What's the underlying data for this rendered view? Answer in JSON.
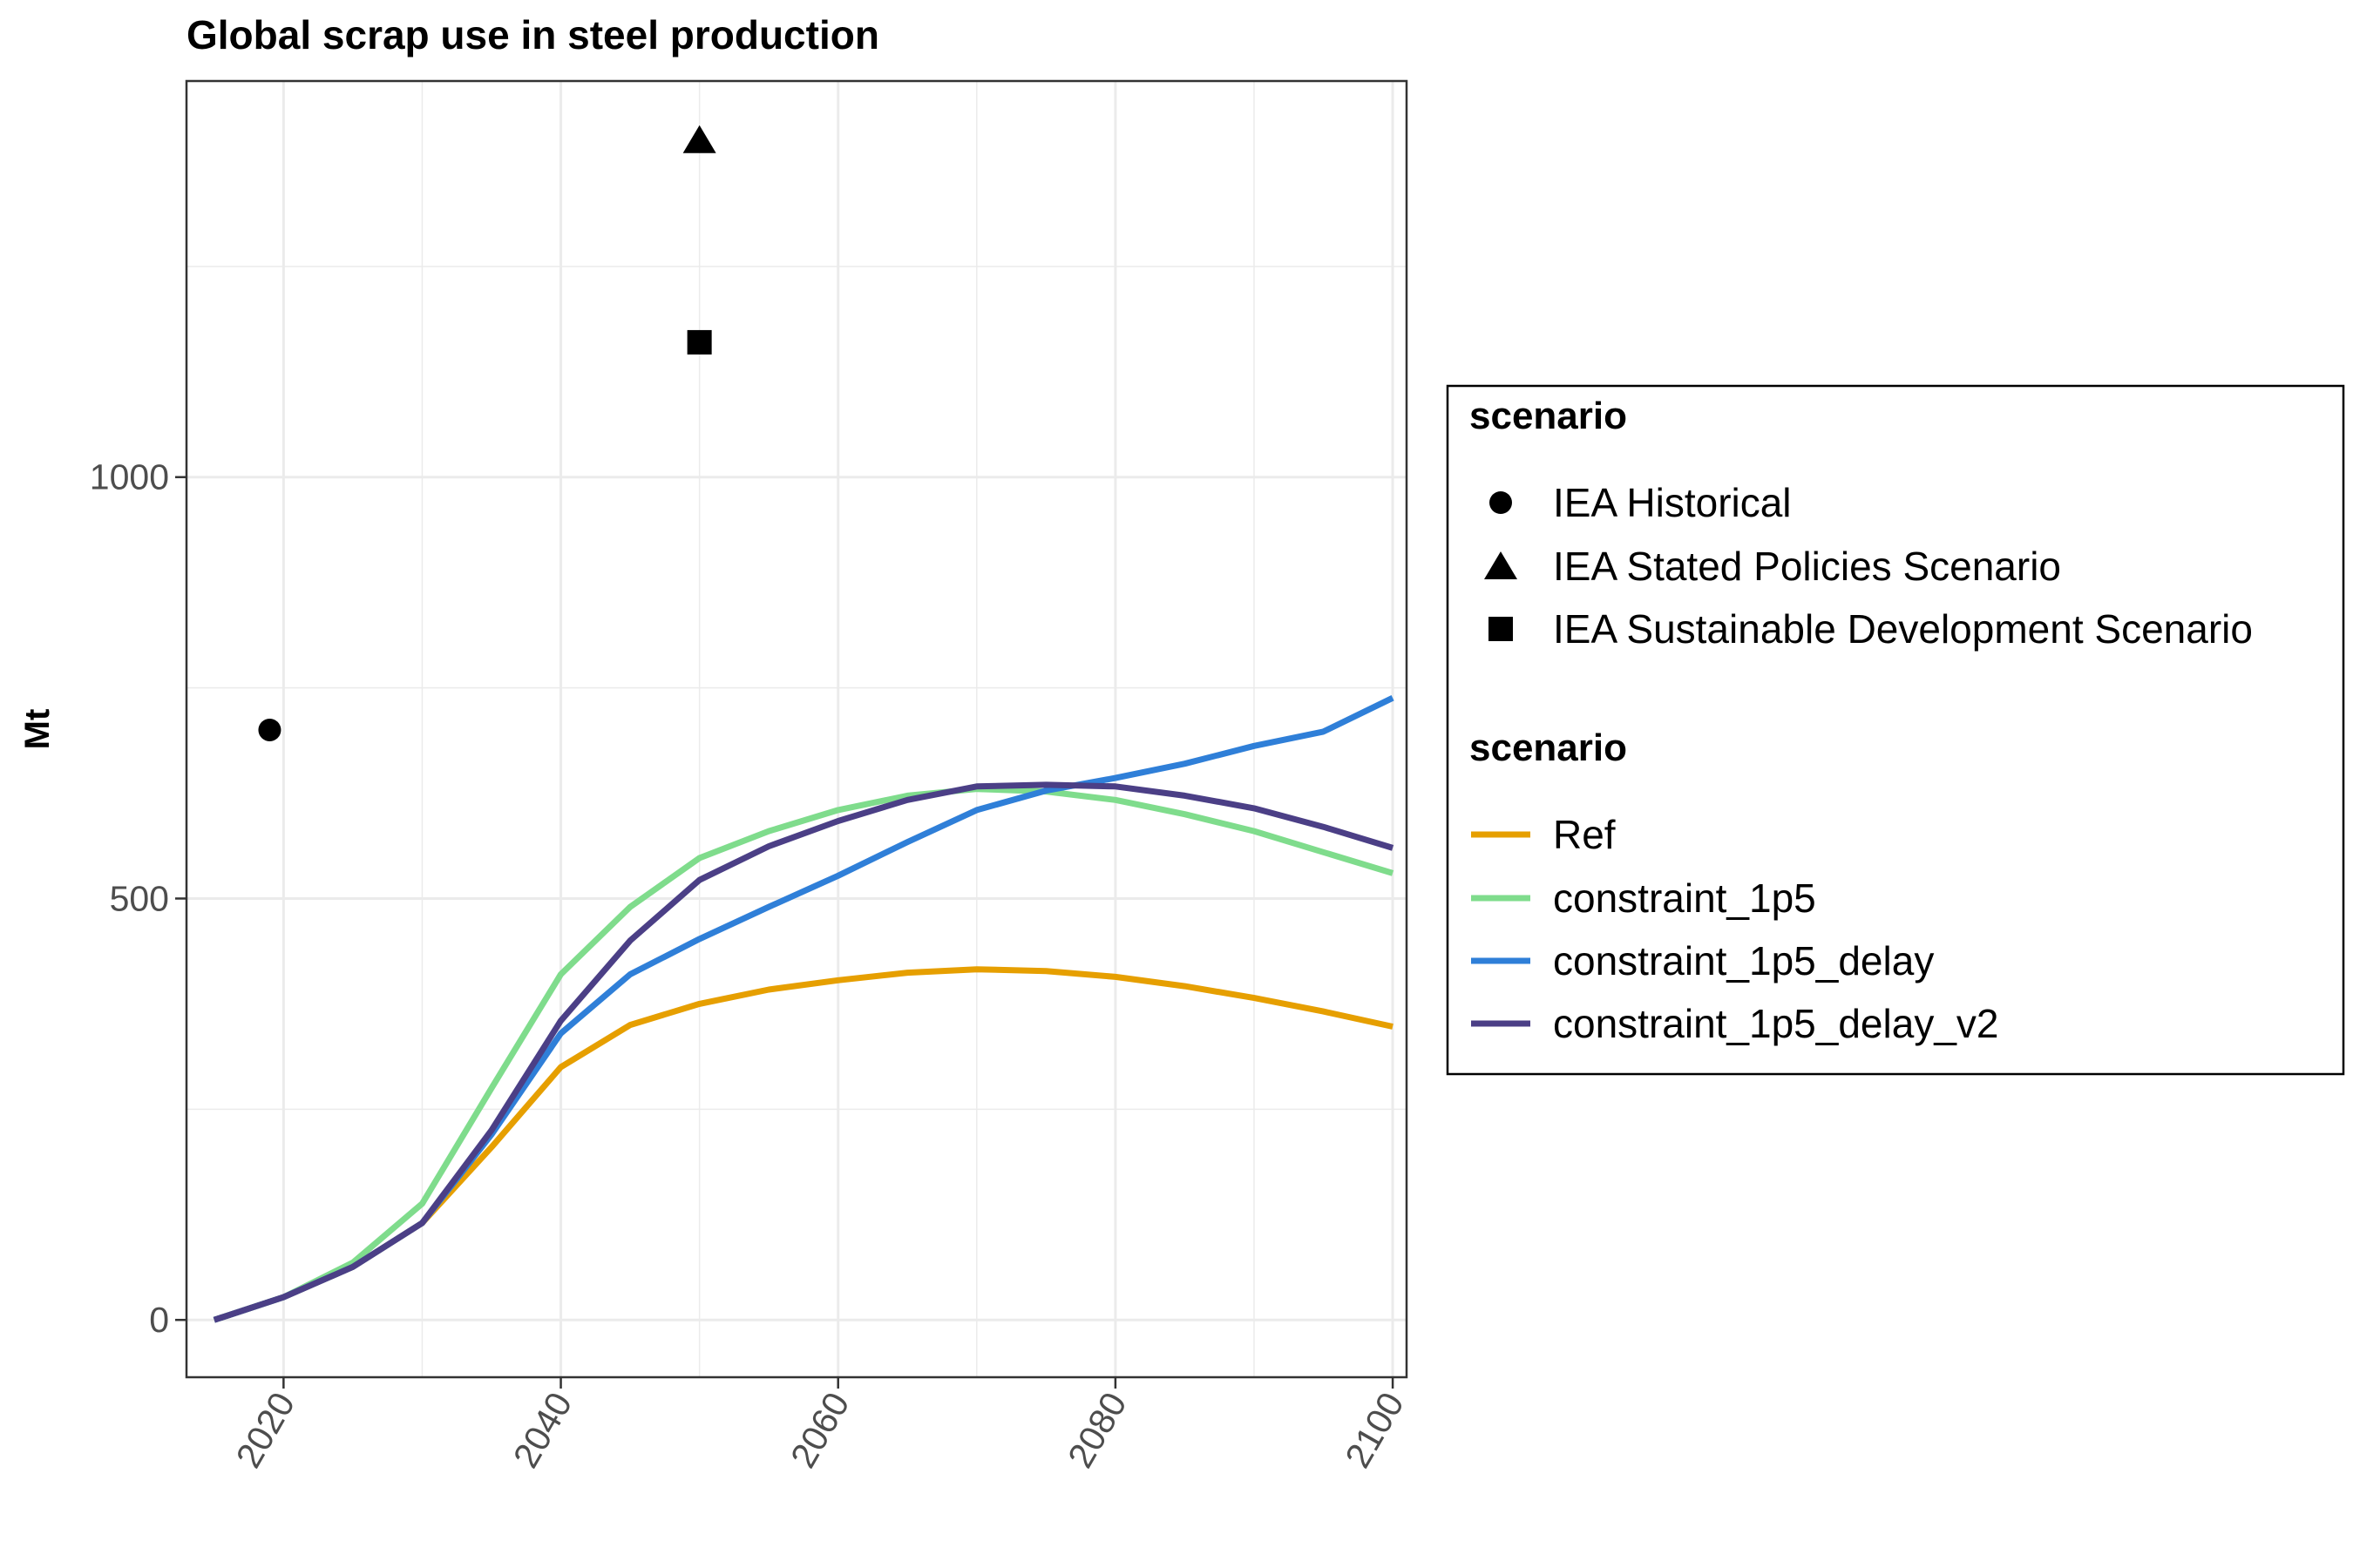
{
  "chart_data": {
    "type": "line",
    "title": "Global scrap use in steel production",
    "xlabel": "",
    "ylabel": "Mt",
    "xlim": [
      2013,
      2101
    ],
    "ylim": [
      -68,
      1470
    ],
    "x_ticks": [
      2020,
      2040,
      2060,
      2080,
      2100
    ],
    "y_ticks": [
      0,
      500,
      1000
    ],
    "grid": true,
    "legend_position": "right",
    "point_legend_title": "scenario",
    "line_legend_title": "scenario",
    "points": [
      {
        "name": "IEA Historical",
        "shape": "circle",
        "x": 2019,
        "y": 700
      },
      {
        "name": "IEA Stated Policies Scenario",
        "shape": "triangle",
        "x": 2050,
        "y": 1400
      },
      {
        "name": "IEA Sustainable Development Scenario",
        "shape": "square",
        "x": 2050,
        "y": 1160
      }
    ],
    "x": [
      2015,
      2020,
      2025,
      2030,
      2035,
      2040,
      2045,
      2050,
      2055,
      2060,
      2065,
      2070,
      2075,
      2080,
      2085,
      2090,
      2095,
      2100
    ],
    "series": [
      {
        "name": "Ref",
        "color": "#E69F00",
        "values": [
          0,
          27,
          63,
          115,
          205,
          300,
          350,
          375,
          392,
          403,
          412,
          416,
          414,
          407,
          396,
          382,
          366,
          348
        ]
      },
      {
        "name": "constraint_1p5",
        "color": "#7FDC8C",
        "values": [
          0,
          27,
          68,
          138,
          275,
          410,
          490,
          548,
          580,
          605,
          622,
          630,
          627,
          617,
          600,
          580,
          555,
          530
        ]
      },
      {
        "name": "constraint_1p5_delay",
        "color": "#2F7FD8",
        "values": [
          0,
          27,
          63,
          115,
          220,
          340,
          410,
          452,
          490,
          527,
          567,
          605,
          628,
          643,
          660,
          681,
          698,
          738
        ]
      },
      {
        "name": "constraint_1p5_delay_v2",
        "color": "#4B3F86",
        "values": [
          0,
          27,
          63,
          115,
          225,
          355,
          450,
          522,
          562,
          592,
          617,
          633,
          635,
          633,
          622,
          607,
          585,
          560
        ]
      }
    ]
  }
}
